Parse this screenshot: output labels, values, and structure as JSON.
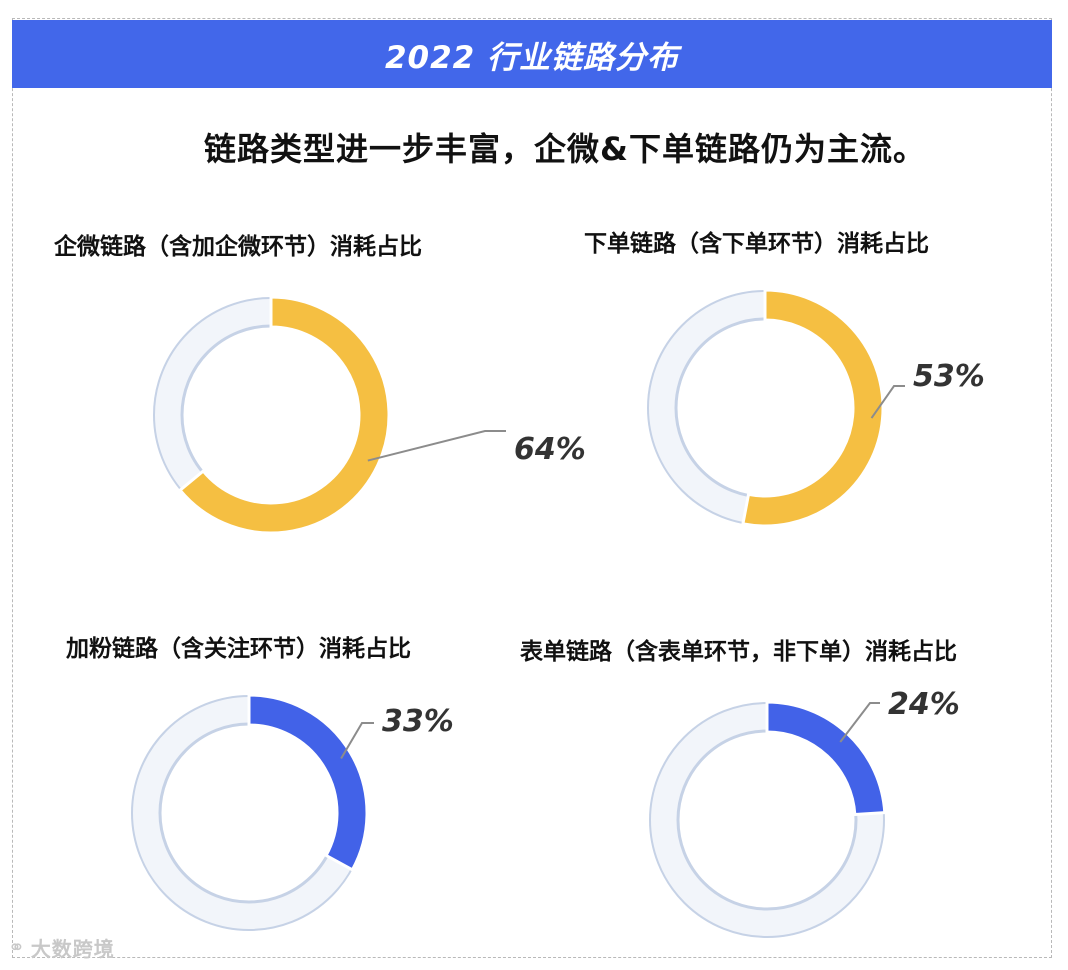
{
  "header": {
    "title": "2022 行业链路分布"
  },
  "subtitle": "链路类型进一步丰富，企微&下单链路仍为主流。",
  "colors": {
    "banner": "#4267ea",
    "yellow": "#f5bf42",
    "blue": "#4262e8",
    "track": "#c6d2e6"
  },
  "watermark": {
    "icon": "logo-icon",
    "text": "大数跨境"
  },
  "chart_data": [
    {
      "type": "pie",
      "title": "企微链路（含加企微环节）消耗占比",
      "value": 64,
      "label": "64%",
      "color": "#f5bf42"
    },
    {
      "type": "pie",
      "title": "下单链路（含下单环节）消耗占比",
      "value": 53,
      "label": "53%",
      "color": "#f5bf42"
    },
    {
      "type": "pie",
      "title": "加粉链路（含关注环节）消耗占比",
      "value": 33,
      "label": "33%",
      "color": "#4262e8"
    },
    {
      "type": "pie",
      "title": "表单链路（含表单环节，非下单）消耗占比",
      "value": 24,
      "label": "24%",
      "color": "#4262e8"
    }
  ]
}
